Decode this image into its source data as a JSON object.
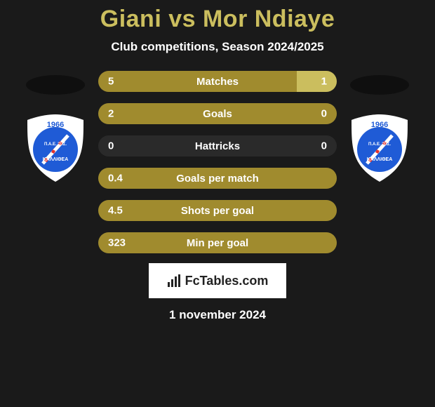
{
  "title": {
    "text": "Giani vs Mor Ndiaye",
    "color": "#cbbe5e",
    "fontsize": 34
  },
  "subtitle": "Club competitions, Season 2024/2025",
  "date": "1 november 2024",
  "colors": {
    "background": "#1a1a1a",
    "left_player": "#a08b2e",
    "right_player": "#cbbe5e",
    "row_base": "#2a2a2a",
    "text": "#ffffff"
  },
  "club": {
    "shield_bg": "#ffffff",
    "inner_circle": "#1f5bd6",
    "year": "1966",
    "greek": "ΚΑΛΛΙΘΕΑ",
    "org": "Π.Α.Ε."
  },
  "stats": [
    {
      "label": "Matches",
      "left_val": "5",
      "right_val": "1",
      "left_pct": 83.3,
      "right_pct": 16.7
    },
    {
      "label": "Goals",
      "left_val": "2",
      "right_val": "0",
      "left_pct": 100,
      "right_pct": 0
    },
    {
      "label": "Hattricks",
      "left_val": "0",
      "right_val": "0",
      "left_pct": 0,
      "right_pct": 0
    },
    {
      "label": "Goals per match",
      "left_val": "0.4",
      "right_val": "",
      "left_pct": 100,
      "right_pct": 0
    },
    {
      "label": "Shots per goal",
      "left_val": "4.5",
      "right_val": "",
      "left_pct": 100,
      "right_pct": 0
    },
    {
      "label": "Min per goal",
      "left_val": "323",
      "right_val": "",
      "left_pct": 100,
      "right_pct": 0
    }
  ],
  "footer_brand": "FcTables.com"
}
